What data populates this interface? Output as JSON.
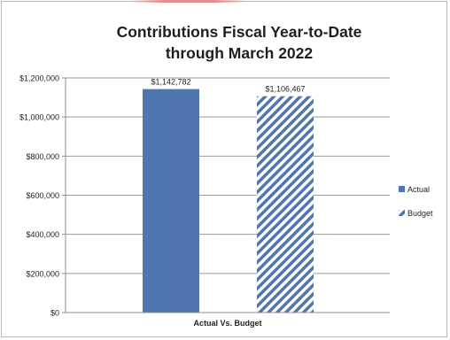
{
  "chart_data": {
    "type": "bar",
    "title": "Contributions Fiscal Year-to-Date through March 2022",
    "title_lines": [
      "Contributions Fiscal Year-to-Date",
      "through March 2022"
    ],
    "categories": [
      "Actual Vs. Budget"
    ],
    "xlabel": "Actual Vs. Budget",
    "ylabel": "",
    "ylim": [
      0,
      1200000
    ],
    "yticks": [
      0,
      200000,
      400000,
      600000,
      800000,
      1000000,
      1200000
    ],
    "ytick_labels": [
      "$0",
      "$200,000",
      "$400,000",
      "$600,000",
      "$800,000",
      "$1,000,000",
      "$1,200,000"
    ],
    "grid": true,
    "legend_position": "right",
    "series": [
      {
        "name": "Actual",
        "values": [
          1142782
        ],
        "label": "$1,142,782",
        "color": "#4f76b0",
        "pattern": "solid"
      },
      {
        "name": "Budget",
        "values": [
          1106467
        ],
        "label": "$1,106,467",
        "color": "#4f76b0",
        "pattern": "diagonal-hatch"
      }
    ]
  }
}
